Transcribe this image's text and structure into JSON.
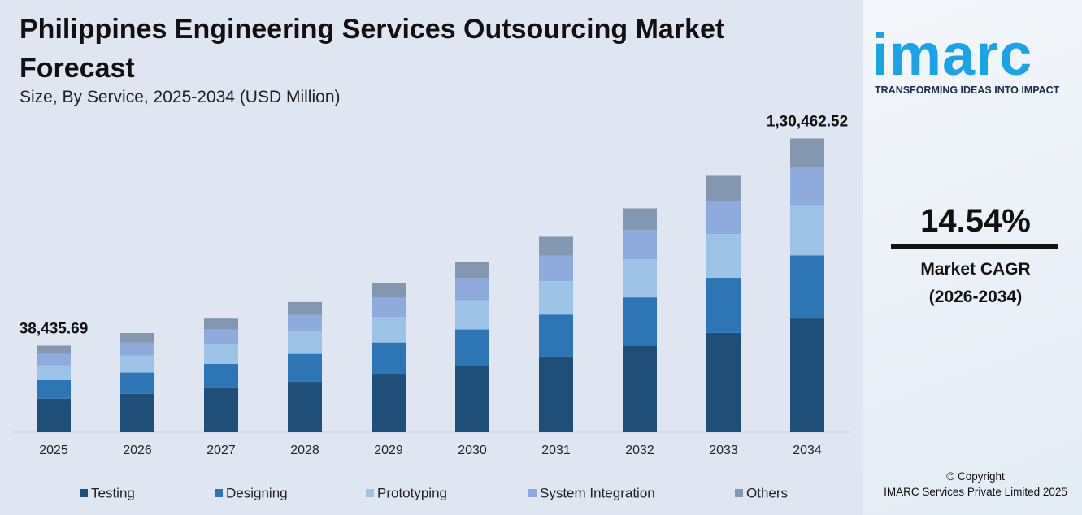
{
  "chart_data": {
    "type": "stacked-bar",
    "title": "Philippines Engineering Services Outsourcing Market Forecast",
    "subtitle": "Size, By Service, 2025-2034 (USD Million)",
    "categories": [
      "2025",
      "2026",
      "2027",
      "2028",
      "2029",
      "2030",
      "2031",
      "2032",
      "2033",
      "2034"
    ],
    "series": [
      {
        "name": "Testing",
        "color": "#1f4e79",
        "values": [
          14875,
          17037,
          19514,
          22352,
          25602,
          29325,
          33588,
          38472,
          44067,
          50489
        ]
      },
      {
        "name": "Designing",
        "color": "#2e75b6",
        "values": [
          8264,
          9465,
          10841,
          12418,
          14223,
          16291,
          18660,
          21374,
          24481,
          28049
        ]
      },
      {
        "name": "Prototyping",
        "color": "#9dc3e6",
        "values": [
          6572,
          7528,
          8623,
          9876,
          11313,
          12957,
          14841,
          16999,
          19471,
          22309
        ]
      },
      {
        "name": "System Integration",
        "color": "#8faadc",
        "values": [
          4997,
          5723,
          6555,
          7508,
          8600,
          9851,
          11283,
          12924,
          14803,
          16960
        ]
      },
      {
        "name": "Others",
        "color": "#8497b0",
        "values": [
          3728,
          4270,
          4891,
          5602,
          6417,
          7350,
          8419,
          9643,
          11045,
          12655
        ]
      }
    ],
    "totals": [
      38435.69,
      null,
      null,
      null,
      null,
      null,
      null,
      null,
      null,
      130462.52
    ],
    "value_labels": [
      "38,435.69",
      null,
      null,
      null,
      null,
      null,
      null,
      null,
      null,
      "1,30,462.52"
    ],
    "ylim": [
      0,
      140000
    ],
    "legend": "bottom"
  },
  "brand": {
    "logo": "imarc",
    "tagline": "TRANSFORMING IDEAS INTO IMPACT"
  },
  "cagr": {
    "value": "14.54%",
    "label": "Market CAGR",
    "period": "(2026-2034)"
  },
  "footer": {
    "copyright": "© Copyright",
    "company": "IMARC Services Private Limited 2025"
  }
}
